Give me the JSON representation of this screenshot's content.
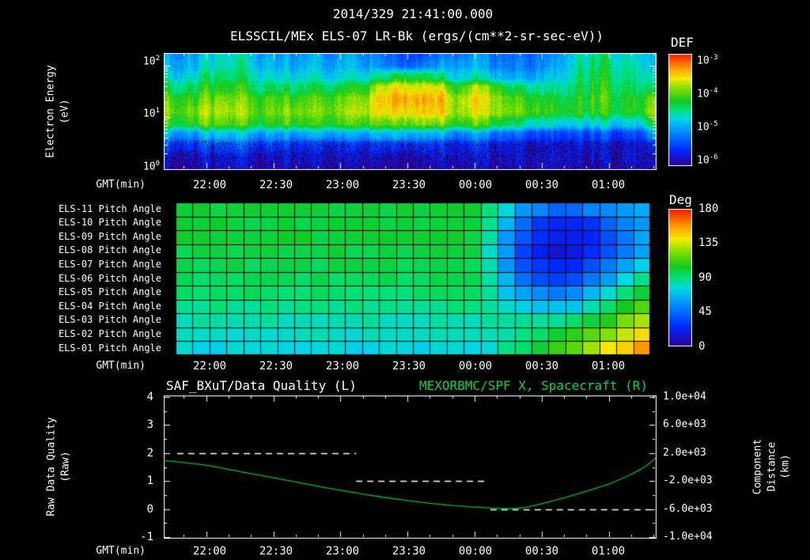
{
  "header": {
    "datetime": "2014/329 21:41:00.000",
    "subtitle": "ELSSCIL/MEx ELS-07 LR-Bk  (ergs/(cm**2-sr-sec-eV))"
  },
  "colors": {
    "background": "#000000",
    "text": "#ffffff",
    "accent_green": "#00d455",
    "curve_green": "#00bb44",
    "quality_white": "#ffffff"
  },
  "time_axis": {
    "label": "GMT(min)",
    "ticks": [
      "22:00",
      "22:30",
      "23:00",
      "23:30",
      "00:00",
      "00:30",
      "01:00"
    ],
    "tick_minutes": [
      19,
      49,
      79,
      109,
      139,
      169,
      199
    ],
    "total_minutes": 220,
    "start_time": "21:41"
  },
  "spectrogram": {
    "ylabel": "Electron Energy\n(eV)",
    "yticks": [
      {
        "base": "10",
        "exp": "2"
      },
      {
        "base": "10",
        "exp": "1"
      },
      {
        "base": "10",
        "exp": "0"
      }
    ],
    "colorbar_title": "DEF",
    "colorbar_ticks": [
      {
        "base": "10",
        "exp": "-3"
      },
      {
        "base": "10",
        "exp": "-4"
      },
      {
        "base": "10",
        "exp": "-5"
      },
      {
        "base": "10",
        "exp": "-6"
      }
    ]
  },
  "pitch_panel": {
    "row_labels": [
      "ELS-11 Pitch Angle",
      "ELS-10 Pitch Angle",
      "ELS-09 Pitch Angle",
      "ELS-08 Pitch Angle",
      "ELS-07 Pitch Angle",
      "ELS-06 Pitch Angle",
      "ELS-05 Pitch Angle",
      "ELS-04 Pitch Angle",
      "ELS-03 Pitch Angle",
      "ELS-02 Pitch Angle",
      "ELS-01 Pitch Angle"
    ],
    "colorbar_title": "Deg",
    "colorbar_ticks": [
      "180",
      "135",
      "90",
      "45",
      "0"
    ]
  },
  "bottom_panel": {
    "title_left": "SAF_BXuT/Data Quality (L)",
    "title_right": "MEXORBMC/SPF X, Spacecraft (R)",
    "ylabel_left": "Raw Data Quality\n(Raw)",
    "ylabel_right": "Component Distance\n(km)",
    "yticks_left": [
      "4",
      "3",
      "2",
      "1",
      "0",
      "-1"
    ],
    "yticks_right": [
      "1.0e+04",
      "6.0e+03",
      "2.0e+03",
      "-2.0e+03",
      "-6.0e+03",
      "-1.0e+04"
    ]
  },
  "colormap_stops": [
    [
      0.0,
      45,
      0,
      150
    ],
    [
      0.14,
      0,
      40,
      255
    ],
    [
      0.3,
      0,
      140,
      255
    ],
    [
      0.42,
      0,
      215,
      230
    ],
    [
      0.5,
      0,
      225,
      120
    ],
    [
      0.58,
      20,
      200,
      30
    ],
    [
      0.7,
      140,
      225,
      0
    ],
    [
      0.78,
      245,
      235,
      0
    ],
    [
      0.88,
      255,
      150,
      0
    ],
    [
      1.0,
      255,
      25,
      0
    ]
  ],
  "chart_data": [
    {
      "type": "heatmap",
      "name": "electron-energy-flux-spectrogram",
      "title": "ELSSCIL/MEx ELS-07 LR-Bk",
      "units": "ergs/(cm**2-sr-sec-eV)",
      "x_range_gmt": [
        "21:41",
        "01:21"
      ],
      "y_scale": "log",
      "y_energies_eV": [
        100,
        63,
        40,
        25,
        16,
        10,
        6.3,
        4,
        2.5,
        1.6,
        1
      ],
      "color_scale": "log",
      "color_range_log10": [
        -6,
        -3
      ],
      "values_log10_flux": [
        [
          -5.0,
          -5.0,
          -4.9,
          -4.8,
          -4.8,
          -4.9,
          -5.0,
          -5.1,
          -5.0,
          -5.1,
          -5.0,
          -5.1,
          -5.2,
          -5.3,
          -5.4,
          -5.3,
          -5.2,
          -5.1,
          -5.2,
          -5.3,
          -5.3,
          -5.2,
          -5.0,
          -4.6,
          -4.5,
          -4.7,
          -4.8,
          -5.0
        ],
        [
          -4.9,
          -4.9,
          -4.8,
          -4.7,
          -4.7,
          -4.8,
          -4.9,
          -5.0,
          -4.9,
          -5.0,
          -4.9,
          -5.0,
          -5.1,
          -5.2,
          -5.2,
          -5.1,
          -5.0,
          -5.0,
          -5.1,
          -5.2,
          -5.2,
          -5.1,
          -4.9,
          -4.5,
          -4.4,
          -4.6,
          -4.7,
          -4.9
        ],
        [
          -4.7,
          -4.7,
          -4.6,
          -4.5,
          -4.6,
          -4.6,
          -4.7,
          -4.8,
          -4.7,
          -4.8,
          -4.7,
          -4.7,
          -4.5,
          -4.2,
          -4.3,
          -4.5,
          -4.8,
          -4.7,
          -4.8,
          -5.0,
          -5.0,
          -4.9,
          -4.8,
          -4.4,
          -4.3,
          -4.5,
          -4.6,
          -4.7
        ],
        [
          -4.4,
          -4.4,
          -4.3,
          -4.3,
          -4.3,
          -4.4,
          -4.4,
          -4.5,
          -4.4,
          -4.4,
          -4.3,
          -4.2,
          -3.7,
          -3.5,
          -3.6,
          -3.7,
          -4.2,
          -3.9,
          -4.0,
          -4.4,
          -4.5,
          -4.6,
          -4.6,
          -4.3,
          -4.2,
          -4.4,
          -4.5,
          -4.4
        ],
        [
          -4.1,
          -4.1,
          -4.1,
          -4.0,
          -4.1,
          -4.1,
          -4.1,
          -4.2,
          -4.1,
          -4.1,
          -4.0,
          -3.9,
          -3.5,
          -3.3,
          -3.4,
          -3.5,
          -3.9,
          -3.7,
          -3.8,
          -4.1,
          -4.2,
          -4.3,
          -4.4,
          -4.2,
          -4.1,
          -4.3,
          -4.3,
          -3.9
        ],
        [
          -4.0,
          -4.0,
          -3.9,
          -3.9,
          -4.0,
          -4.0,
          -4.0,
          -4.0,
          -4.0,
          -4.0,
          -3.9,
          -3.8,
          -3.6,
          -3.5,
          -3.5,
          -3.6,
          -3.9,
          -3.8,
          -3.8,
          -4.0,
          -4.1,
          -4.2,
          -4.3,
          -4.2,
          -4.2,
          -4.3,
          -4.3,
          -3.8
        ],
        [
          -4.2,
          -4.2,
          -4.1,
          -4.1,
          -4.2,
          -4.2,
          -4.2,
          -4.2,
          -4.2,
          -4.2,
          -4.1,
          -4.1,
          -4.0,
          -3.9,
          -3.9,
          -4.0,
          -4.2,
          -4.1,
          -4.2,
          -4.4,
          -4.6,
          -4.7,
          -4.8,
          -4.7,
          -4.7,
          -4.8,
          -4.8,
          -4.2
        ],
        [
          -5.0,
          -5.0,
          -5.0,
          -4.9,
          -5.0,
          -5.0,
          -5.0,
          -5.1,
          -5.0,
          -5.0,
          -5.0,
          -5.0,
          -4.9,
          -4.8,
          -4.9,
          -5.0,
          -5.2,
          -5.1,
          -5.2,
          -5.3,
          -5.4,
          -5.5,
          -5.5,
          -5.4,
          -5.4,
          -5.5,
          -5.5,
          -5.0
        ],
        [
          -5.5,
          -5.5,
          -5.5,
          -5.5,
          -5.5,
          -5.5,
          -5.5,
          -5.6,
          -5.6,
          -5.6,
          -5.6,
          -5.6,
          -5.5,
          -5.5,
          -5.5,
          -5.6,
          -5.7,
          -5.6,
          -5.7,
          -5.7,
          -5.8,
          -5.8,
          -5.8,
          -5.7,
          -5.7,
          -5.8,
          -5.8,
          -5.6
        ],
        [
          -5.8,
          -5.8,
          -5.8,
          -5.8,
          -5.8,
          -5.8,
          -5.8,
          -5.8,
          -5.8,
          -5.8,
          -5.8,
          -5.8,
          -5.8,
          -5.8,
          -5.8,
          -5.8,
          -5.8,
          -5.8,
          -5.8,
          -5.8,
          -5.8,
          -5.8,
          -5.8,
          -5.8,
          -5.8,
          -5.8,
          -5.8,
          -5.8
        ],
        [
          -5.9,
          -5.9,
          -5.9,
          -5.9,
          -5.9,
          -5.9,
          -5.9,
          -5.9,
          -5.9,
          -5.9,
          -5.9,
          -5.9,
          -5.9,
          -5.9,
          -5.9,
          -5.9,
          -5.9,
          -5.9,
          -5.9,
          -5.9,
          -5.9,
          -5.9,
          -5.9,
          -5.9,
          -5.9,
          -5.9,
          -5.9,
          -5.9
        ]
      ]
    },
    {
      "type": "heatmap",
      "name": "els-pitch-angle-panel",
      "rows": [
        "ELS-11",
        "ELS-10",
        "ELS-09",
        "ELS-08",
        "ELS-07",
        "ELS-06",
        "ELS-05",
        "ELS-04",
        "ELS-03",
        "ELS-02",
        "ELS-01"
      ],
      "units": "deg",
      "color_range_deg": [
        0,
        180
      ],
      "values_deg": [
        [
          100,
          100,
          100,
          100,
          100,
          100,
          100,
          100,
          100,
          100,
          100,
          100,
          100,
          100,
          100,
          100,
          100,
          100,
          90,
          75,
          60,
          50,
          45,
          45,
          50,
          55,
          60,
          65
        ],
        [
          100,
          100,
          100,
          100,
          100,
          100,
          100,
          100,
          100,
          100,
          100,
          100,
          100,
          100,
          100,
          100,
          100,
          100,
          85,
          65,
          45,
          32,
          25,
          25,
          30,
          40,
          50,
          60
        ],
        [
          100,
          100,
          100,
          100,
          100,
          100,
          100,
          100,
          100,
          100,
          100,
          100,
          100,
          100,
          100,
          100,
          100,
          100,
          82,
          60,
          38,
          25,
          18,
          18,
          25,
          35,
          48,
          58
        ],
        [
          98,
          98,
          98,
          98,
          98,
          98,
          98,
          98,
          98,
          98,
          98,
          98,
          98,
          98,
          98,
          98,
          98,
          98,
          80,
          58,
          36,
          22,
          16,
          18,
          26,
          38,
          52,
          62
        ],
        [
          97,
          97,
          97,
          97,
          97,
          97,
          97,
          97,
          97,
          97,
          97,
          97,
          97,
          97,
          97,
          97,
          97,
          97,
          80,
          60,
          40,
          28,
          22,
          25,
          35,
          48,
          62,
          72
        ],
        [
          95,
          95,
          95,
          95,
          95,
          95,
          95,
          95,
          95,
          95,
          95,
          95,
          95,
          95,
          95,
          95,
          95,
          95,
          82,
          65,
          48,
          38,
          33,
          38,
          50,
          62,
          75,
          85
        ],
        [
          92,
          92,
          92,
          92,
          92,
          92,
          92,
          92,
          92,
          92,
          92,
          92,
          92,
          92,
          92,
          92,
          92,
          92,
          85,
          72,
          60,
          52,
          50,
          55,
          65,
          78,
          90,
          100
        ],
        [
          88,
          88,
          88,
          88,
          88,
          88,
          88,
          88,
          88,
          88,
          88,
          88,
          88,
          88,
          88,
          88,
          88,
          88,
          86,
          80,
          72,
          68,
          68,
          73,
          82,
          93,
          105,
          115
        ],
        [
          83,
          83,
          83,
          83,
          83,
          83,
          83,
          83,
          83,
          83,
          83,
          83,
          83,
          83,
          83,
          83,
          83,
          83,
          84,
          84,
          84,
          85,
          88,
          92,
          100,
          110,
          122,
          132
        ],
        [
          80,
          80,
          80,
          80,
          80,
          80,
          80,
          80,
          80,
          80,
          80,
          80,
          80,
          80,
          80,
          80,
          80,
          80,
          82,
          85,
          90,
          95,
          100,
          107,
          115,
          125,
          136,
          146
        ],
        [
          76,
          76,
          76,
          76,
          76,
          76,
          76,
          76,
          76,
          76,
          76,
          76,
          76,
          76,
          76,
          76,
          76,
          76,
          80,
          86,
          94,
          102,
          110,
          118,
          128,
          138,
          148,
          158
        ]
      ]
    },
    {
      "type": "line",
      "name": "data-quality-and-spacecraft-x",
      "ylim_left": [
        -1,
        4
      ],
      "ylim_right": [
        -10000,
        10000
      ],
      "series": [
        {
          "name": "SAF_BXuT/Data Quality (L)",
          "axis": "left",
          "style": "dashed",
          "color": "#ffffff",
          "segments": [
            {
              "value": 2,
              "t_start_min": 6,
              "t_end_min": 86
            },
            {
              "value": 1,
              "t_start_min": 86,
              "t_end_min": 144
            },
            {
              "value": 0,
              "t_start_min": 146,
              "t_end_min": 219
            }
          ]
        },
        {
          "name": "MEXORBMC/SPF X, Spacecraft (R)",
          "axis": "right",
          "style": "solid",
          "color": "#00bb44",
          "points_t_min_km": [
            [
              0,
              950
            ],
            [
              10,
              600
            ],
            [
              19,
              280
            ],
            [
              29,
              -320
            ],
            [
              39,
              -940
            ],
            [
              49,
              -1520
            ],
            [
              59,
              -2140
            ],
            [
              69,
              -2750
            ],
            [
              79,
              -3320
            ],
            [
              89,
              -3850
            ],
            [
              99,
              -4350
            ],
            [
              109,
              -4800
            ],
            [
              119,
              -5180
            ],
            [
              129,
              -5490
            ],
            [
              139,
              -5720
            ],
            [
              147,
              -5870
            ],
            [
              155,
              -5960
            ],
            [
              162,
              -5760
            ],
            [
              169,
              -5240
            ],
            [
              179,
              -4400
            ],
            [
              189,
              -3450
            ],
            [
              199,
              -2440
            ],
            [
              206,
              -1500
            ],
            [
              212,
              -550
            ],
            [
              216,
              200
            ],
            [
              220,
              1300
            ]
          ]
        }
      ]
    }
  ]
}
